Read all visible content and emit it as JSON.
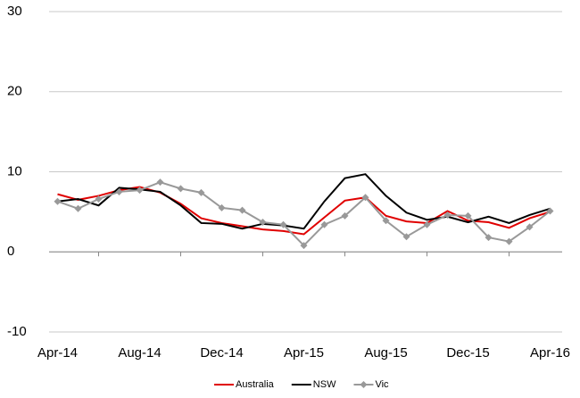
{
  "chart_data": {
    "type": "line",
    "categories": [
      "Apr-14",
      null,
      null,
      null,
      "Aug-14",
      null,
      null,
      null,
      "Dec-14",
      null,
      null,
      null,
      "Apr-15",
      null,
      null,
      null,
      "Aug-15",
      null,
      null,
      null,
      "Dec-15",
      null,
      null,
      null,
      "Apr-16"
    ],
    "series": [
      {
        "name": "Australia",
        "color": "#e00000",
        "marker": false,
        "values": [
          7.2,
          6.5,
          7.0,
          7.7,
          8.1,
          7.4,
          6.0,
          4.2,
          3.6,
          3.2,
          2.8,
          2.6,
          2.2,
          4.3,
          6.4,
          6.8,
          4.5,
          3.8,
          3.6,
          5.1,
          3.9,
          3.7,
          3.0,
          4.2,
          5.0
        ]
      },
      {
        "name": "NSW",
        "color": "#000000",
        "marker": false,
        "values": [
          6.3,
          6.6,
          5.8,
          8.0,
          7.8,
          7.5,
          5.8,
          3.6,
          3.5,
          2.9,
          3.5,
          3.3,
          2.9,
          6.3,
          9.2,
          9.7,
          7.0,
          4.9,
          4.0,
          4.4,
          3.7,
          4.4,
          3.6,
          4.6,
          5.4
        ]
      },
      {
        "name": "Vic",
        "color": "#999999",
        "marker": true,
        "values": [
          6.3,
          5.4,
          6.6,
          7.5,
          7.7,
          8.7,
          7.9,
          7.4,
          5.5,
          5.2,
          3.7,
          3.4,
          0.8,
          3.4,
          4.5,
          6.8,
          3.9,
          1.9,
          3.4,
          4.6,
          4.5,
          1.8,
          1.3,
          3.1,
          5.1
        ]
      }
    ],
    "ylim": [
      -10,
      30
    ],
    "yticks": [
      -10,
      0,
      10,
      20,
      30
    ],
    "grid": true,
    "legend": "bottom"
  }
}
